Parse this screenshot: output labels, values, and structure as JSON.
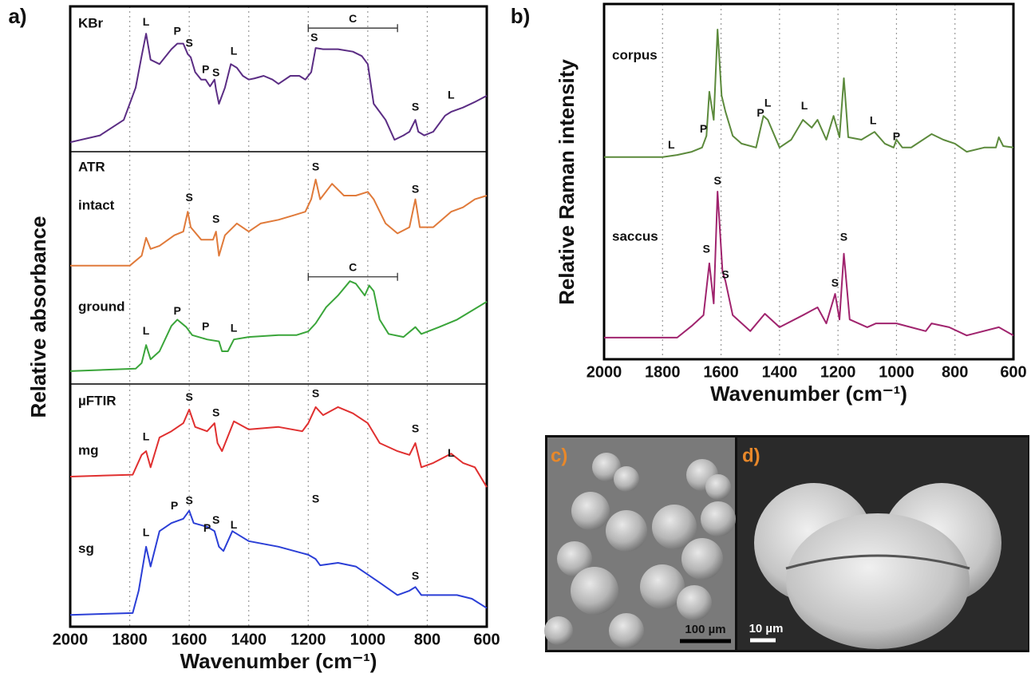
{
  "chart_data": [
    {
      "type": "line",
      "panel_label": "a)",
      "xlabel": "Wavenumber (cm⁻¹)",
      "ylabel": "Relative absorbance",
      "xlim": [
        2000,
        600
      ],
      "xticks": [
        2000,
        1800,
        1600,
        1400,
        1200,
        1000,
        800,
        600
      ],
      "ylim": [
        0,
        100
      ],
      "grid": true,
      "group_labels": [
        "ATR",
        "µFTIR"
      ],
      "series": [
        {
          "name": "KBr",
          "color": "#5b2d84",
          "x": [
            2000,
            1900,
            1820,
            1780,
            1760,
            1745,
            1730,
            1700,
            1660,
            1640,
            1620,
            1605,
            1595,
            1580,
            1560,
            1545,
            1530,
            1515,
            1510,
            1500,
            1480,
            1460,
            1440,
            1420,
            1400,
            1380,
            1350,
            1320,
            1300,
            1260,
            1230,
            1210,
            1190,
            1175,
            1150,
            1100,
            1050,
            1020,
            1000,
            980,
            960,
            940,
            910,
            880,
            860,
            840,
            830,
            810,
            780,
            740,
            720,
            680,
            640,
            600
          ],
          "values": [
            78.1,
            79.2,
            81.7,
            86.9,
            92.0,
            95.6,
            91.4,
            90.7,
            93.1,
            94.0,
            94.0,
            92.3,
            91.8,
            89.4,
            88.2,
            88.2,
            87.1,
            88.2,
            86.6,
            84.3,
            86.9,
            90.7,
            90.1,
            88.8,
            88.2,
            88.4,
            88.8,
            88.2,
            87.5,
            88.8,
            88.8,
            88.2,
            89.4,
            93.3,
            93.1,
            93.1,
            92.7,
            92.0,
            90.7,
            84.3,
            83.0,
            81.7,
            78.5,
            79.2,
            79.8,
            81.7,
            79.8,
            79.2,
            79.8,
            82.4,
            83.0,
            83.7,
            84.6,
            85.6
          ]
        },
        {
          "name": "intact",
          "color": "#e07a3a",
          "x": [
            2000,
            1800,
            1760,
            1745,
            1730,
            1700,
            1650,
            1620,
            1605,
            1595,
            1560,
            1520,
            1510,
            1500,
            1480,
            1440,
            1400,
            1360,
            1300,
            1250,
            1210,
            1190,
            1175,
            1160,
            1120,
            1080,
            1040,
            1000,
            980,
            940,
            900,
            860,
            840,
            825,
            780,
            720,
            680,
            640,
            600
          ],
          "values": [
            58.2,
            58.2,
            59.8,
            62.7,
            60.9,
            61.4,
            63.1,
            63.7,
            66.9,
            64.4,
            62.4,
            62.4,
            63.7,
            59.8,
            63.1,
            65.0,
            63.7,
            65.0,
            65.6,
            66.3,
            66.9,
            68.9,
            72.1,
            68.9,
            71.4,
            69.5,
            69.5,
            70.1,
            68.9,
            65.0,
            63.4,
            64.4,
            68.9,
            64.4,
            64.4,
            66.9,
            67.6,
            68.9,
            69.5
          ]
        },
        {
          "name": "ground",
          "color": "#3aa53a",
          "x": [
            2000,
            1780,
            1760,
            1745,
            1730,
            1700,
            1660,
            1640,
            1610,
            1590,
            1540,
            1500,
            1490,
            1470,
            1450,
            1400,
            1300,
            1240,
            1200,
            1175,
            1140,
            1100,
            1060,
            1040,
            1010,
            995,
            980,
            960,
            930,
            880,
            840,
            820,
            760,
            700,
            600
          ],
          "values": [
            41.2,
            41.6,
            42.5,
            45.4,
            43.1,
            44.4,
            48.5,
            49.5,
            48.3,
            47.0,
            46.3,
            46.0,
            44.4,
            44.4,
            46.3,
            46.7,
            47.0,
            47.0,
            47.6,
            48.9,
            51.5,
            53.4,
            55.7,
            55.3,
            53.4,
            55.0,
            54.1,
            49.5,
            47.2,
            46.7,
            48.3,
            47.2,
            48.3,
            49.5,
            52.4
          ]
        },
        {
          "name": "mg",
          "color": "#e03030",
          "x": [
            2000,
            1790,
            1760,
            1745,
            1730,
            1700,
            1660,
            1620,
            1600,
            1580,
            1540,
            1515,
            1505,
            1490,
            1450,
            1400,
            1300,
            1220,
            1200,
            1175,
            1150,
            1100,
            1050,
            1000,
            960,
            900,
            860,
            840,
            820,
            780,
            720,
            680,
            640,
            600
          ],
          "values": [
            24.2,
            24.5,
            27.7,
            28.3,
            25.7,
            30.5,
            31.5,
            32.8,
            35.0,
            32.2,
            31.5,
            32.8,
            29.6,
            28.3,
            33.1,
            31.8,
            32.2,
            31.5,
            32.8,
            35.4,
            34.1,
            35.4,
            34.4,
            32.8,
            29.6,
            28.3,
            27.7,
            29.6,
            25.7,
            26.4,
            27.9,
            26.4,
            25.7,
            22.5
          ]
        },
        {
          "name": "sg",
          "color": "#2b3fd6",
          "x": [
            2000,
            1790,
            1770,
            1745,
            1730,
            1700,
            1660,
            1620,
            1600,
            1585,
            1540,
            1515,
            1500,
            1485,
            1455,
            1400,
            1300,
            1200,
            1175,
            1160,
            1100,
            1040,
            1000,
            960,
            900,
            860,
            840,
            820,
            760,
            700,
            650,
            600
          ],
          "values": [
            1.9,
            2.2,
            5.8,
            12.9,
            9.7,
            15.4,
            16.7,
            17.4,
            18.7,
            16.7,
            16.1,
            15.4,
            12.9,
            12.2,
            15.4,
            13.8,
            12.9,
            11.6,
            10.9,
            9.9,
            10.3,
            9.7,
            8.4,
            7.1,
            5.1,
            5.8,
            6.4,
            5.1,
            5.1,
            5.1,
            4.5,
            3.0
          ]
        }
      ],
      "annotations": [
        {
          "text": "L",
          "x": 1745,
          "y": 97.4
        },
        {
          "text": "P",
          "x": 1640,
          "y": 95.9
        },
        {
          "text": "S",
          "x": 1600,
          "y": 94.0
        },
        {
          "text": "P",
          "x": 1545,
          "y": 89.7
        },
        {
          "text": "S",
          "x": 1510,
          "y": 89.2
        },
        {
          "text": "L",
          "x": 1450,
          "y": 92.7
        },
        {
          "text": "S",
          "x": 1180,
          "y": 94.9
        },
        {
          "text": "S",
          "x": 840,
          "y": 83.7
        },
        {
          "text": "L",
          "x": 720,
          "y": 85.6
        },
        {
          "text": "S",
          "x": 1600,
          "y": 69.1
        },
        {
          "text": "S",
          "x": 1510,
          "y": 65.6
        },
        {
          "text": "S",
          "x": 1175,
          "y": 74.0
        },
        {
          "text": "S",
          "x": 840,
          "y": 70.4
        },
        {
          "text": "L",
          "x": 1745,
          "y": 47.6
        },
        {
          "text": "P",
          "x": 1640,
          "y": 50.8
        },
        {
          "text": "P",
          "x": 1545,
          "y": 48.3
        },
        {
          "text": "L",
          "x": 1450,
          "y": 48.0
        },
        {
          "text": "L",
          "x": 1745,
          "y": 30.5
        },
        {
          "text": "S",
          "x": 1600,
          "y": 36.9
        },
        {
          "text": "S",
          "x": 1510,
          "y": 34.4
        },
        {
          "text": "S",
          "x": 1175,
          "y": 37.5
        },
        {
          "text": "S",
          "x": 840,
          "y": 31.8
        },
        {
          "text": "L",
          "x": 720,
          "y": 27.9
        },
        {
          "text": "L",
          "x": 1745,
          "y": 15.1
        },
        {
          "text": "P",
          "x": 1650,
          "y": 19.4
        },
        {
          "text": "S",
          "x": 1600,
          "y": 20.2
        },
        {
          "text": "P",
          "x": 1540,
          "y": 15.8
        },
        {
          "text": "S",
          "x": 1510,
          "y": 17.1
        },
        {
          "text": "L",
          "x": 1450,
          "y": 16.3
        },
        {
          "text": "S",
          "x": 1175,
          "y": 20.5
        },
        {
          "text": "S",
          "x": 840,
          "y": 8.1
        }
      ],
      "brackets": [
        {
          "text": "C",
          "from": 1200,
          "to": 900,
          "y": 96.5
        },
        {
          "text": "C",
          "from": 1200,
          "to": 900,
          "y": 56.4
        }
      ]
    },
    {
      "type": "line",
      "panel_label": "b)",
      "xlabel": "Wavenumber (cm⁻¹)",
      "ylabel": "Relative Raman intensity",
      "xlim": [
        2000,
        600
      ],
      "xticks": [
        2000,
        1800,
        1600,
        1400,
        1200,
        1000,
        800,
        600
      ],
      "ylim": [
        0,
        100
      ],
      "grid": true,
      "series": [
        {
          "name": "corpus",
          "color": "#5c8a3c",
          "x": [
            2000,
            1800,
            1750,
            1700,
            1665,
            1650,
            1640,
            1625,
            1612,
            1598,
            1585,
            1560,
            1530,
            1480,
            1455,
            1440,
            1400,
            1360,
            1320,
            1290,
            1270,
            1240,
            1215,
            1195,
            1180,
            1165,
            1120,
            1075,
            1040,
            1010,
            1000,
            980,
            950,
            880,
            840,
            800,
            760,
            700,
            660,
            650,
            635,
            600
          ],
          "values": [
            56.9,
            56.9,
            57.5,
            58.4,
            59.6,
            62.9,
            75.3,
            67.4,
            92.8,
            74.2,
            69.7,
            62.9,
            60.7,
            59.6,
            68.5,
            67.4,
            59.6,
            61.8,
            67.4,
            65.2,
            67.4,
            61.8,
            68.5,
            62.5,
            79.1,
            62.5,
            61.8,
            64.0,
            60.7,
            59.6,
            61.8,
            59.6,
            59.6,
            63.4,
            61.8,
            60.7,
            58.4,
            59.6,
            59.6,
            62.5,
            60.0,
            59.6
          ]
        },
        {
          "name": "saccus",
          "color": "#a0246e",
          "x": [
            2000,
            1750,
            1700,
            1660,
            1640,
            1625,
            1612,
            1595,
            1585,
            1560,
            1500,
            1450,
            1400,
            1320,
            1270,
            1240,
            1210,
            1195,
            1180,
            1160,
            1100,
            1070,
            1000,
            900,
            880,
            820,
            760,
            650,
            600
          ],
          "values": [
            6.1,
            6.1,
            9.4,
            12.4,
            27.0,
            15.7,
            47.2,
            24.7,
            22.0,
            12.4,
            7.9,
            12.8,
            9.0,
            12.4,
            14.6,
            10.1,
            18.4,
            11.2,
            29.7,
            11.2,
            9.0,
            10.1,
            10.1,
            7.9,
            10.1,
            9.0,
            6.7,
            9.0,
            6.7
          ]
        }
      ],
      "annotations": [
        {
          "text": "L",
          "x": 1770,
          "y": 60.2
        },
        {
          "text": "P",
          "x": 1660,
          "y": 64.7
        },
        {
          "text": "P",
          "x": 1465,
          "y": 69.2
        },
        {
          "text": "L",
          "x": 1440,
          "y": 71.9
        },
        {
          "text": "L",
          "x": 1315,
          "y": 71.2
        },
        {
          "text": "L",
          "x": 1080,
          "y": 67.0
        },
        {
          "text": "P",
          "x": 1000,
          "y": 62.5
        },
        {
          "text": "S",
          "x": 1612,
          "y": 50.1
        },
        {
          "text": "S",
          "x": 1650,
          "y": 30.8
        },
        {
          "text": "S",
          "x": 1585,
          "y": 23.6
        },
        {
          "text": "S",
          "x": 1210,
          "y": 21.3
        },
        {
          "text": "S",
          "x": 1180,
          "y": 34.2
        }
      ]
    }
  ],
  "images": {
    "c": {
      "label": "c)",
      "scale_bar": "100 µm"
    },
    "d": {
      "label": "d)",
      "scale_bar": "10 µm"
    }
  }
}
